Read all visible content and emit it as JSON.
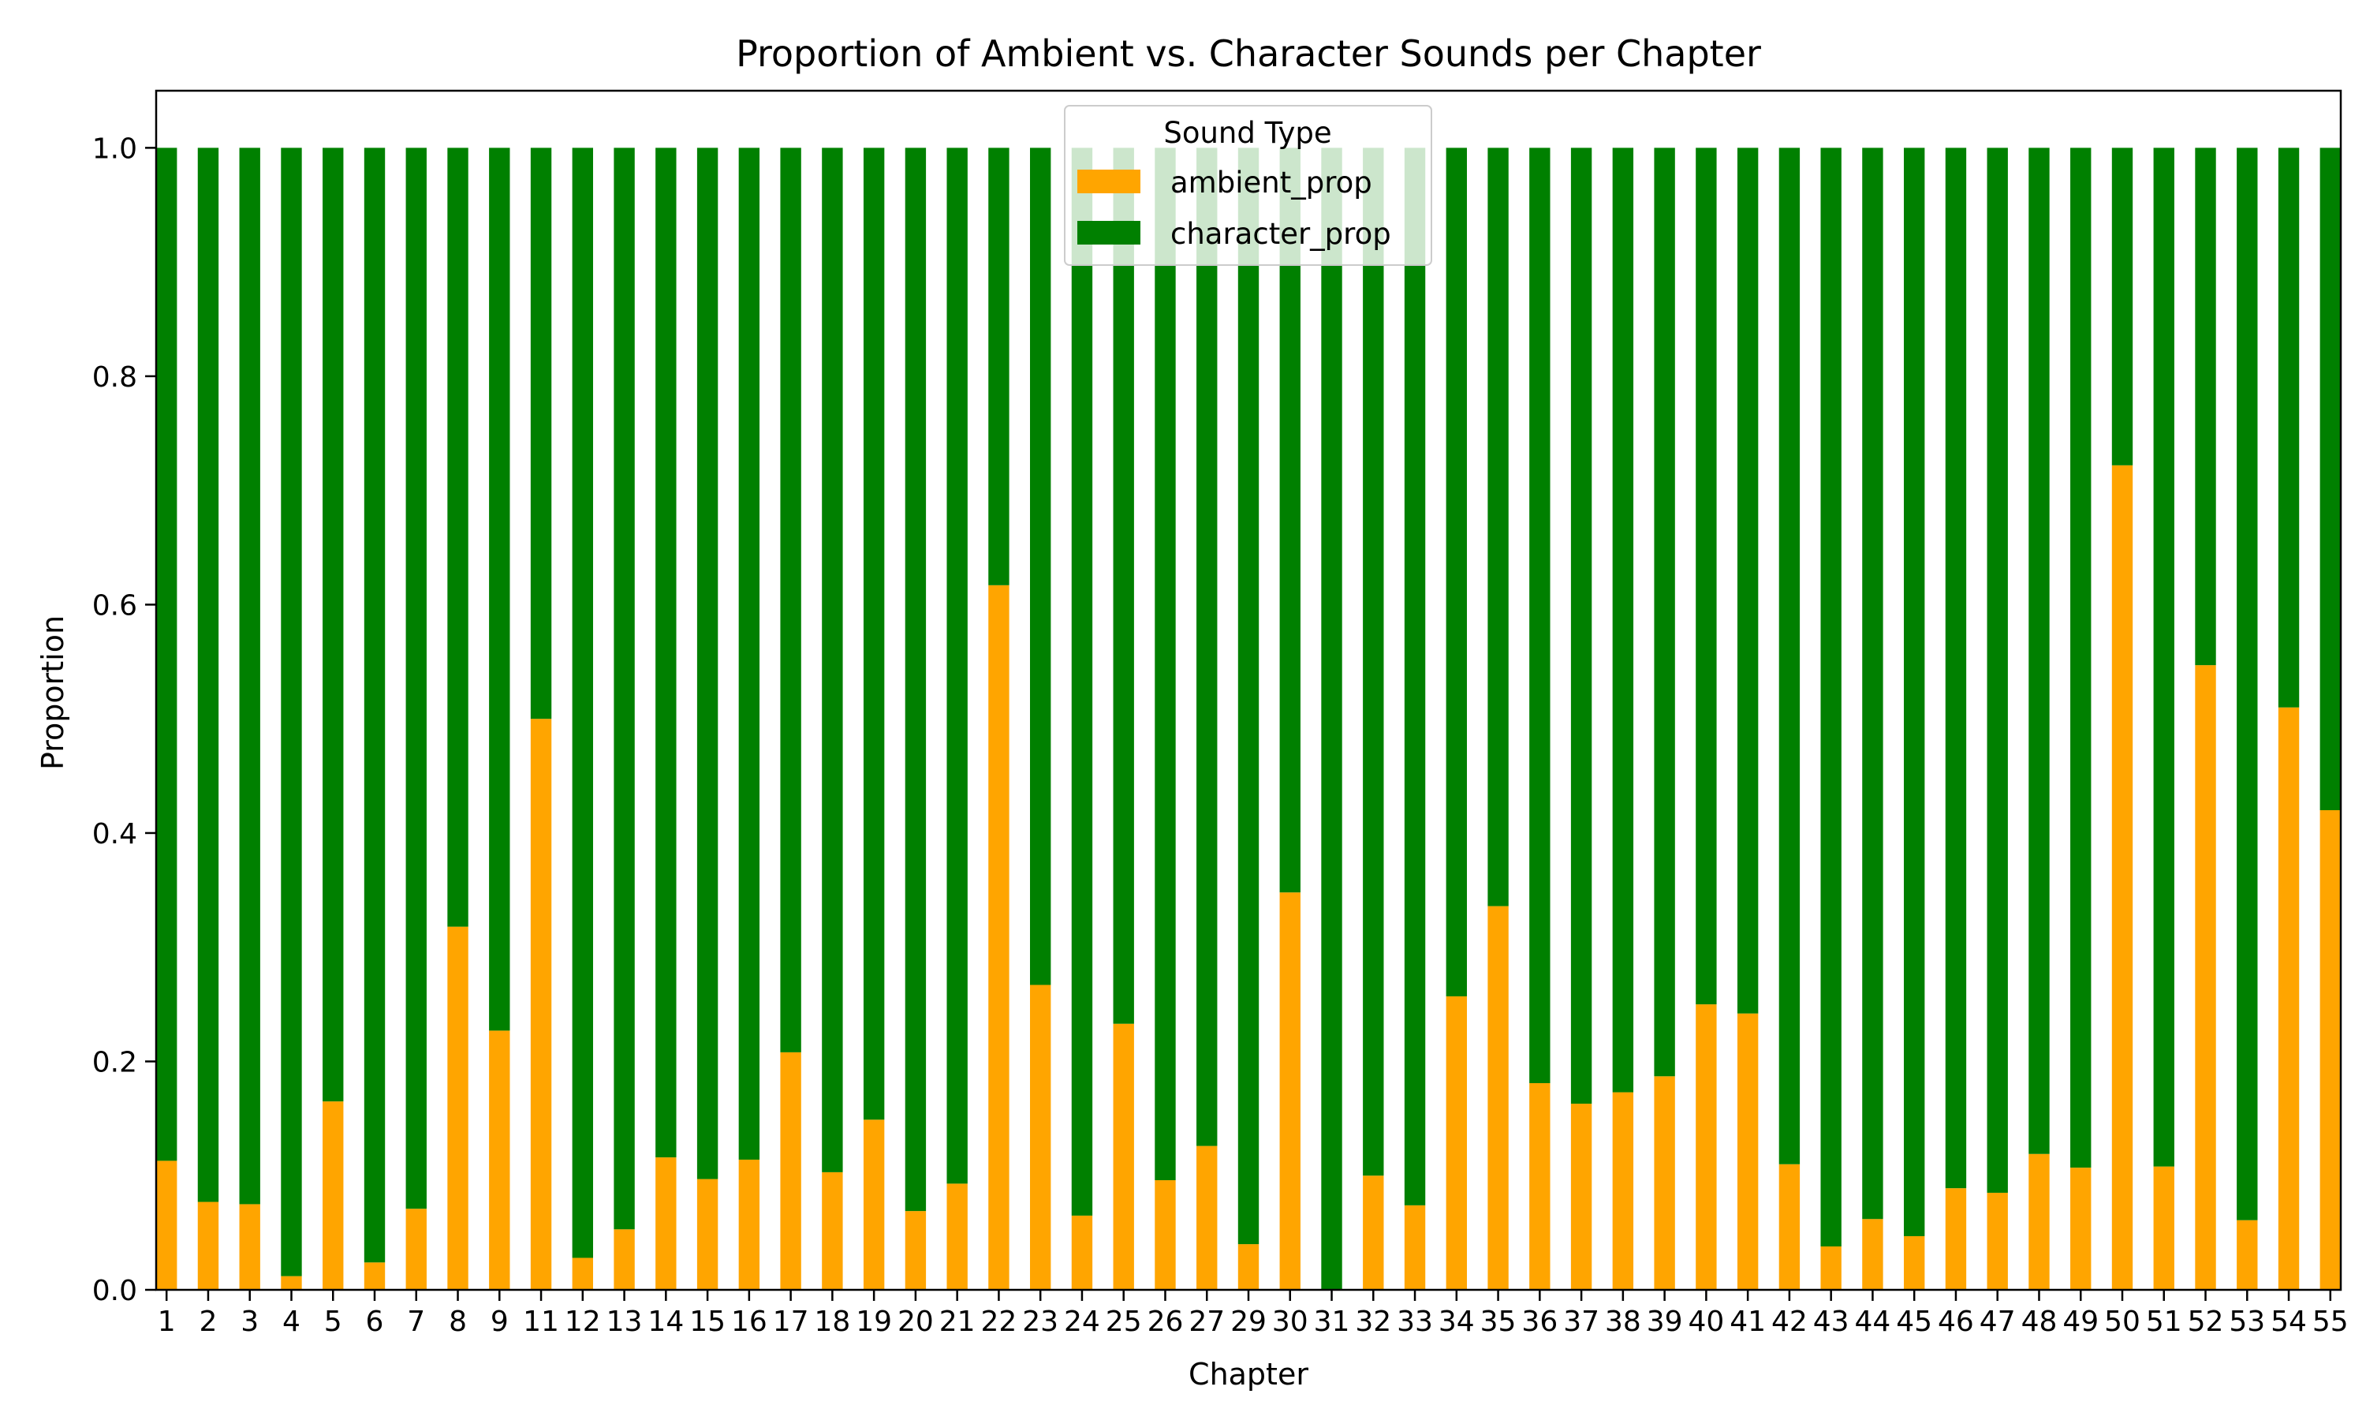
{
  "chart_data": {
    "type": "bar",
    "stacked": true,
    "title": "Proportion of Ambient vs. Character Sounds per Chapter",
    "xlabel": "Chapter",
    "ylabel": "Proportion",
    "ylim": [
      0,
      1.05
    ],
    "yticks": [
      "0.0",
      "0.2",
      "0.4",
      "0.6",
      "0.8",
      "1.0"
    ],
    "categories": [
      "1",
      "2",
      "3",
      "4",
      "5",
      "6",
      "7",
      "8",
      "9",
      "11",
      "12",
      "13",
      "14",
      "15",
      "16",
      "17",
      "18",
      "19",
      "20",
      "21",
      "22",
      "23",
      "24",
      "25",
      "26",
      "27",
      "29",
      "30",
      "31",
      "32",
      "33",
      "34",
      "35",
      "36",
      "37",
      "38",
      "39",
      "40",
      "41",
      "42",
      "43",
      "44",
      "45",
      "46",
      "47",
      "48",
      "49",
      "50",
      "51",
      "52",
      "53",
      "54",
      "55"
    ],
    "legend": {
      "title": "Sound Type",
      "position": "top-center"
    },
    "series": [
      {
        "name": "ambient_prop",
        "color": "#ffa500",
        "values": [
          0.113,
          0.077,
          0.075,
          0.012,
          0.165,
          0.024,
          0.071,
          0.318,
          0.227,
          0.5,
          0.028,
          0.053,
          0.116,
          0.097,
          0.114,
          0.208,
          0.103,
          0.149,
          0.069,
          0.093,
          0.617,
          0.267,
          0.065,
          0.233,
          0.096,
          0.126,
          0.04,
          0.348,
          0.0,
          0.1,
          0.074,
          0.257,
          0.336,
          0.181,
          0.163,
          0.173,
          0.187,
          0.25,
          0.242,
          0.11,
          0.038,
          0.062,
          0.047,
          0.089,
          0.085,
          0.119,
          0.107,
          0.722,
          0.108,
          0.547,
          0.061,
          0.51,
          0.42
        ]
      },
      {
        "name": "character_prop",
        "color": "#008000",
        "values": [
          0.887,
          0.923,
          0.925,
          0.988,
          0.835,
          0.976,
          0.929,
          0.682,
          0.773,
          0.5,
          0.972,
          0.947,
          0.884,
          0.903,
          0.886,
          0.792,
          0.897,
          0.851,
          0.931,
          0.907,
          0.383,
          0.733,
          0.935,
          0.767,
          0.904,
          0.874,
          0.96,
          0.652,
          1.0,
          0.9,
          0.926,
          0.743,
          0.664,
          0.819,
          0.837,
          0.827,
          0.813,
          0.75,
          0.758,
          0.89,
          0.962,
          0.938,
          0.953,
          0.911,
          0.915,
          0.881,
          0.893,
          0.278,
          0.892,
          0.453,
          0.939,
          0.49,
          0.58
        ]
      }
    ]
  }
}
